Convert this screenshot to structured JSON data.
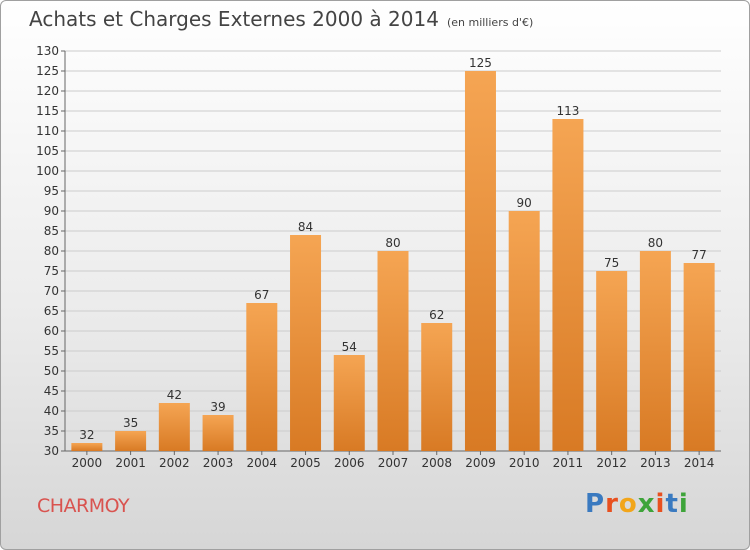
{
  "header": {
    "title": "Achats et Charges Externes 2000 à 2014",
    "unit": "(en milliers d'€)"
  },
  "footer": {
    "commune": "CHARMOY",
    "logo_text": "Proxiti",
    "logo_colors": [
      "#3a7ac0",
      "#e8501f",
      "#f2a51a",
      "#3ea43a",
      "#e8501f",
      "#3a7ac0",
      "#3ea43a"
    ]
  },
  "colors": {
    "bar_light": "#f5a553",
    "bar_dark": "#d87a24",
    "axis_text": "#333333",
    "grid": "#cccccc"
  },
  "chart_data": {
    "type": "bar",
    "title": "Achats et Charges Externes 2000 à 2014",
    "subtitle": "(en milliers d'€)",
    "categories": [
      "2000",
      "2001",
      "2002",
      "2003",
      "2004",
      "2005",
      "2006",
      "2007",
      "2008",
      "2009",
      "2010",
      "2011",
      "2012",
      "2013",
      "2014"
    ],
    "values": [
      32,
      35,
      42,
      39,
      67,
      84,
      54,
      80,
      62,
      125,
      90,
      113,
      75,
      80,
      77
    ],
    "ylim": [
      30,
      130
    ],
    "yticks": [
      30,
      35,
      40,
      45,
      50,
      55,
      60,
      65,
      70,
      75,
      80,
      85,
      90,
      95,
      100,
      105,
      110,
      115,
      120,
      125,
      130
    ],
    "xlabel": "",
    "ylabel": "",
    "grid": true,
    "legend": "none"
  }
}
